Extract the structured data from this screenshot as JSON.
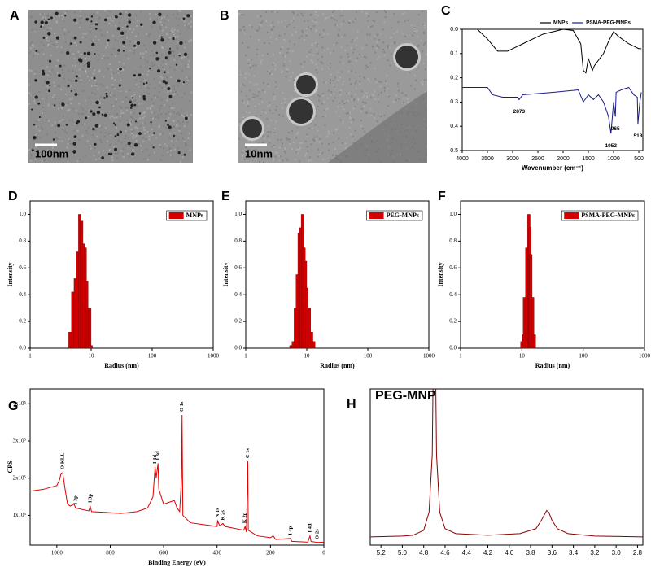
{
  "chart_data": [
    {
      "type": "image",
      "label": "A",
      "scale_bar": "100nm"
    },
    {
      "type": "image",
      "label": "B",
      "scale_bar": "10nm"
    },
    {
      "type": "line",
      "label": "C",
      "x_label": "Wavenumber (cm⁻¹)",
      "xlim": [
        4000,
        420
      ],
      "xticks": [
        4000,
        3500,
        3000,
        2500,
        2000,
        1500,
        1000,
        500
      ],
      "ylim": [
        0,
        0.5
      ],
      "y_inverted": true,
      "yticks": [
        {
          "value": 0,
          "label": "0.0"
        },
        0.1,
        0.2,
        0.3,
        0.4,
        0.5
      ],
      "legend": "top",
      "annotations": [
        2873,
        1052,
        965,
        518
      ],
      "series": [
        {
          "name": "MNPs",
          "color": "#000000",
          "x": [
            4000,
            3700,
            3500,
            3300,
            3100,
            2800,
            2400,
            2000,
            1800,
            1650,
            1600,
            1550,
            1500,
            1420,
            1380,
            1200,
            1100,
            1000,
            900,
            700,
            600,
            500,
            450
          ],
          "values": [
            0.0,
            0.0,
            0.04,
            0.09,
            0.09,
            0.06,
            0.02,
            0.0,
            0.005,
            0.06,
            0.17,
            0.18,
            0.12,
            0.17,
            0.15,
            0.1,
            0.05,
            0.01,
            0.03,
            0.06,
            0.07,
            0.08,
            0.08
          ]
        },
        {
          "name": "PSMA-PEG-MNPs",
          "color": "#1a1a8c",
          "x": [
            4000,
            3500,
            3400,
            3200,
            2900,
            2873,
            2800,
            2200,
            1700,
            1600,
            1500,
            1400,
            1300,
            1200,
            1100,
            1052,
            1000,
            965,
            950,
            850,
            700,
            600,
            530,
            518,
            480,
            450
          ],
          "values": [
            0.24,
            0.24,
            0.27,
            0.28,
            0.28,
            0.29,
            0.27,
            0.26,
            0.25,
            0.3,
            0.27,
            0.29,
            0.27,
            0.3,
            0.36,
            0.43,
            0.3,
            0.36,
            0.26,
            0.25,
            0.24,
            0.27,
            0.28,
            0.39,
            0.3,
            0.26
          ]
        }
      ]
    },
    {
      "type": "bar",
      "label": "D",
      "x_label": "Radius (nm)",
      "y_label": "Intensity",
      "log_x": true,
      "xlim": [
        1,
        1000
      ],
      "xticks": [
        1,
        10,
        100,
        1000
      ],
      "ylim": [
        0,
        1.1
      ],
      "yticks": [
        {
          "value": 0,
          "label": "0.0"
        },
        0.2,
        0.4,
        0.6,
        0.8,
        {
          "value": 1,
          "label": "1.0"
        }
      ],
      "legend": "top-right",
      "x": [
        4.5,
        5,
        5.5,
        6,
        6.5,
        7,
        7.5,
        8,
        8.5,
        9,
        9.5,
        10
      ],
      "series": [
        {
          "name": "MNPs",
          "color": "#d40000",
          "values": [
            0.12,
            0.42,
            0.52,
            0.72,
            1.0,
            0.95,
            0.78,
            0.75,
            0.5,
            0.3,
            0.3,
            0.02
          ]
        }
      ]
    },
    {
      "type": "bar",
      "label": "E",
      "x_label": "Radius (nm)",
      "y_label": "Intensity",
      "log_x": true,
      "xlim": [
        1,
        1000
      ],
      "xticks": [
        1,
        10,
        100,
        1000
      ],
      "ylim": [
        0,
        1.1
      ],
      "yticks": [
        {
          "value": 0,
          "label": "0.0"
        },
        0.2,
        0.4,
        0.6,
        0.8,
        {
          "value": 1,
          "label": "1.0"
        }
      ],
      "legend": "top-right",
      "x": [
        5.5,
        6,
        6.5,
        7,
        7.5,
        8,
        8.5,
        9,
        9.5,
        10,
        11,
        12,
        13
      ],
      "series": [
        {
          "name": "PEG-MNPs",
          "color": "#d40000",
          "values": [
            0.02,
            0.05,
            0.3,
            0.55,
            0.86,
            0.9,
            1.0,
            0.75,
            0.65,
            0.45,
            0.3,
            0.12,
            0.05
          ]
        }
      ]
    },
    {
      "type": "bar",
      "label": "F",
      "x_label": "Radius (nm)",
      "y_label": "Intensity",
      "log_x": true,
      "xlim": [
        1,
        1000
      ],
      "xticks": [
        1,
        10,
        100,
        1000
      ],
      "ylim": [
        0,
        1.1
      ],
      "yticks": [
        {
          "value": 0,
          "label": "0.0"
        },
        0.2,
        0.4,
        0.6,
        0.8,
        {
          "value": 1,
          "label": "1.0"
        }
      ],
      "legend": "top-right",
      "x": [
        10,
        10.5,
        11,
        12,
        13,
        13.5,
        14,
        15,
        16
      ],
      "series": [
        {
          "name": "PSMA-PEG-MNPs",
          "color": "#d40000",
          "values": [
            0.05,
            0.1,
            0.38,
            0.75,
            1.0,
            0.9,
            0.7,
            0.38,
            0.1
          ]
        }
      ]
    },
    {
      "type": "line",
      "label": "G",
      "x_label": "Binding Energy (eV)",
      "y_label": "CPS",
      "xlim": [
        1100,
        0
      ],
      "xticks": [
        1000,
        800,
        600,
        400,
        200,
        0
      ],
      "ylim": [
        20000,
        440000
      ],
      "yticks": [
        {
          "value": 100000,
          "label": "1x10⁵"
        },
        {
          "value": 200000,
          "label": "2x10⁵"
        },
        {
          "value": 300000,
          "label": "3x10⁵"
        },
        {
          "value": 400000,
          "label": "4x10⁵"
        }
      ],
      "peak_labels": [
        {
          "text": "O KLL",
          "x": 978
        },
        {
          "text": "I 3p",
          "x": 930
        },
        {
          "text": "I 3p",
          "x": 875
        },
        {
          "text": "I 3d",
          "x": 632
        },
        {
          "text": "I 3d",
          "x": 621
        },
        {
          "text": "O 1s",
          "x": 531
        },
        {
          "text": "N 1s",
          "x": 398
        },
        {
          "text": "K 2s",
          "x": 378
        },
        {
          "text": "K 2p",
          "x": 295
        },
        {
          "text": "C 1s",
          "x": 285
        },
        {
          "text": "I 4p",
          "x": 125
        },
        {
          "text": "I 4d",
          "x": 52
        },
        {
          "text": "O 2s",
          "x": 25
        }
      ],
      "series": [
        {
          "color": "#e00000",
          "x": [
            1100,
            1050,
            1000,
            990,
            985,
            978,
            975,
            970,
            960,
            950,
            935,
            930,
            900,
            880,
            875,
            870,
            820,
            760,
            700,
            660,
            640,
            632,
            628,
            621,
            618,
            600,
            560,
            550,
            540,
            533,
            531,
            528,
            500,
            450,
            400,
            398,
            390,
            378,
            370,
            300,
            295,
            290,
            285,
            283,
            250,
            200,
            190,
            180,
            125,
            120,
            60,
            52,
            48,
            25,
            0
          ],
          "values": [
            165000,
            170000,
            180000,
            195000,
            210000,
            215000,
            200000,
            175000,
            130000,
            125000,
            130000,
            120000,
            115000,
            112000,
            125000,
            110000,
            108000,
            105000,
            110000,
            120000,
            150000,
            230000,
            200000,
            240000,
            170000,
            130000,
            140000,
            120000,
            110000,
            200000,
            370000,
            100000,
            80000,
            75000,
            70000,
            85000,
            72000,
            78000,
            70000,
            60000,
            70000,
            55000,
            245000,
            60000,
            45000,
            40000,
            45000,
            35000,
            38000,
            30000,
            28000,
            45000,
            30000,
            27000,
            28000
          ]
        }
      ]
    },
    {
      "type": "line",
      "label": "H",
      "title": "PEG-MNP",
      "xlim": [
        5.3,
        2.75
      ],
      "xticks": [
        5.2,
        {
          "value": 5,
          "label": "5.0"
        },
        4.8,
        4.6,
        4.4,
        4.2,
        {
          "value": 4,
          "label": "4.0"
        },
        3.8,
        3.6,
        3.4,
        3.2,
        {
          "value": 3,
          "label": "3.0"
        },
        2.8
      ],
      "ylim": [
        0.05,
        1
      ],
      "series": [
        {
          "color": "#8b0000",
          "x": [
            5.3,
            5.0,
            4.9,
            4.8,
            4.75,
            4.72,
            4.71,
            4.69,
            4.68,
            4.65,
            4.6,
            4.5,
            4.2,
            3.9,
            3.75,
            3.7,
            3.65,
            3.63,
            3.6,
            3.55,
            3.45,
            3.2,
            2.75
          ],
          "values": [
            0.1,
            0.105,
            0.11,
            0.14,
            0.25,
            0.6,
            1.2,
            1.2,
            0.6,
            0.25,
            0.15,
            0.12,
            0.11,
            0.12,
            0.15,
            0.2,
            0.26,
            0.25,
            0.2,
            0.15,
            0.12,
            0.105,
            0.1
          ]
        }
      ]
    }
  ]
}
